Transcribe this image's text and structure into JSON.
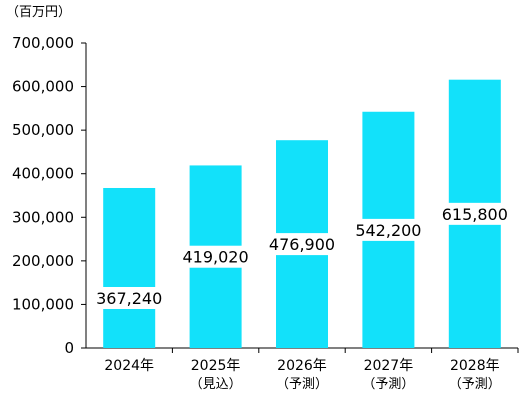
{
  "chart_data": {
    "type": "bar",
    "unit_label": "（百万円）",
    "categories": [
      "2024年",
      "2025年",
      "2026年",
      "2027年",
      "2028年"
    ],
    "category_notes": [
      "",
      "（見込）",
      "（予測）",
      "（予測）",
      "（予測）"
    ],
    "values": [
      367240,
      419020,
      476900,
      542200,
      615800
    ],
    "value_labels": [
      "367,240",
      "419,020",
      "476,900",
      "542,200",
      "615,800"
    ],
    "ylim": [
      0,
      700000
    ],
    "yticks": [
      0,
      100000,
      200000,
      300000,
      400000,
      500000,
      600000,
      700000
    ],
    "ytick_labels": [
      "0",
      "100,000",
      "200,000",
      "300,000",
      "400,000",
      "500,000",
      "600,000",
      "700,000"
    ],
    "grid": false,
    "legend": false,
    "title": "",
    "xlabel": "",
    "ylabel": "",
    "colors": {
      "bar": "#12e1fa",
      "axis": "#000000",
      "text": "#000000",
      "label_background": "#ffffff"
    }
  }
}
